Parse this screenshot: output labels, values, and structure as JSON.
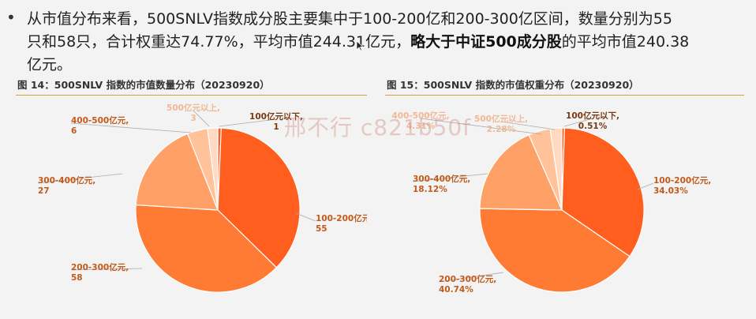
{
  "text": {
    "bullet": "•",
    "line1": "从市值分布来看，500SNLV指数成分股主要集中于100-200亿和200-300亿区间，数量分别为55",
    "line2a": "只和58只，合计权重达74.77%，平均市值244.31亿元，",
    "line2b": "略大于中证500成分股",
    "line2c": "的平均市值240.38",
    "line3": "亿元。"
  },
  "watermark": "邢不行 c821b50f",
  "colors": {
    "rule": "#d6a13d",
    "label": "#c25a1a",
    "slices": [
      "#ff5a1f",
      "#ff5e1e",
      "#ff7a33",
      "#ffa066",
      "#ffc29a",
      "#ffd9c2"
    ]
  },
  "chart_data": [
    {
      "type": "pie",
      "title": "图 14：500SNLV 指数的市值数量分布（20230920）",
      "categories": [
        "100亿元以下",
        "100-200亿元",
        "200-300亿元",
        "300-400亿元",
        "400-500亿元",
        "500亿元以上"
      ],
      "values": [
        1,
        55,
        58,
        27,
        6,
        3
      ],
      "labels": [
        "100亿元以下, 1",
        "100-200亿元, 55",
        "200-300亿元, 58",
        "300-400亿元, 27",
        "400-500亿元, 6",
        "500亿元以上, 3"
      ]
    },
    {
      "type": "pie",
      "title": "图 15：500SNLV 指数的市值权重分布（20230920）",
      "categories": [
        "100亿元以下",
        "100-200亿元",
        "200-300亿元",
        "300-400亿元",
        "400-500亿元",
        "500亿元以上"
      ],
      "values": [
        0.51,
        34.03,
        40.74,
        18.12,
        4.31,
        2.28
      ],
      "labels": [
        "100亿元以下, 0.51%",
        "100-200亿元, 34.03%",
        "200-300亿元, 40.74%",
        "300-400亿元, 18.12%",
        "400-500亿元, 4.31%",
        "500亿元以上, 2.28%"
      ]
    }
  ]
}
